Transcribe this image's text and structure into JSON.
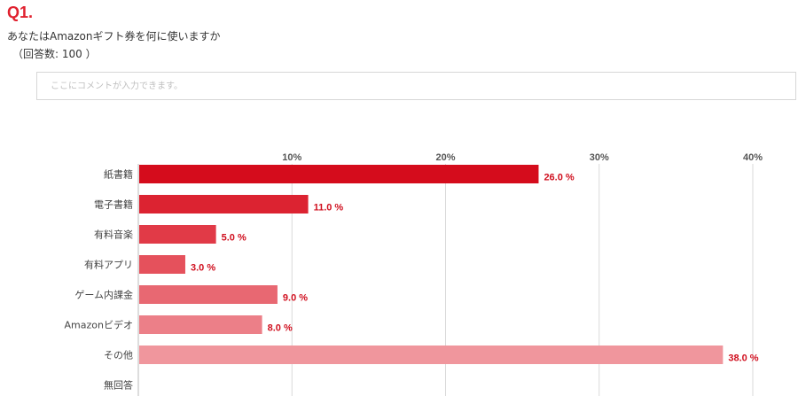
{
  "question": {
    "number": "Q1.",
    "text": "あなたはAmazonギフト券を何に使いますか",
    "count": "（回答数: 100 ）"
  },
  "comment": {
    "placeholder": "ここにコメントが入力できます。"
  },
  "colors": {
    "accent": "#e0202e",
    "value_label": "#d0101f",
    "gridline": "#d9d9d9"
  },
  "chart_data": {
    "type": "bar",
    "orientation": "horizontal",
    "categories": [
      "紙書籍",
      "電子書籍",
      "有料音楽",
      "有料アプリ",
      "ゲーム内課金",
      "Amazonビデオ",
      "その他",
      "無回答"
    ],
    "values": [
      26.0,
      11.0,
      5.0,
      3.0,
      9.0,
      8.0,
      38.0,
      0
    ],
    "value_labels": [
      "26.0 %",
      "11.0 %",
      "5.0 %",
      "3.0 %",
      "9.0 %",
      "8.0 %",
      "38.0 %",
      ""
    ],
    "bar_colors": [
      "#d50c1c",
      "#dc2331",
      "#e13a47",
      "#e5515c",
      "#e86872",
      "#ec7f88",
      "#f0969d",
      "#f3adb2"
    ],
    "ticks": [
      10,
      20,
      30,
      40
    ],
    "tick_labels": [
      "10%",
      "20%",
      "30%",
      "40%"
    ],
    "xlim": [
      0,
      40
    ],
    "grid": true
  }
}
